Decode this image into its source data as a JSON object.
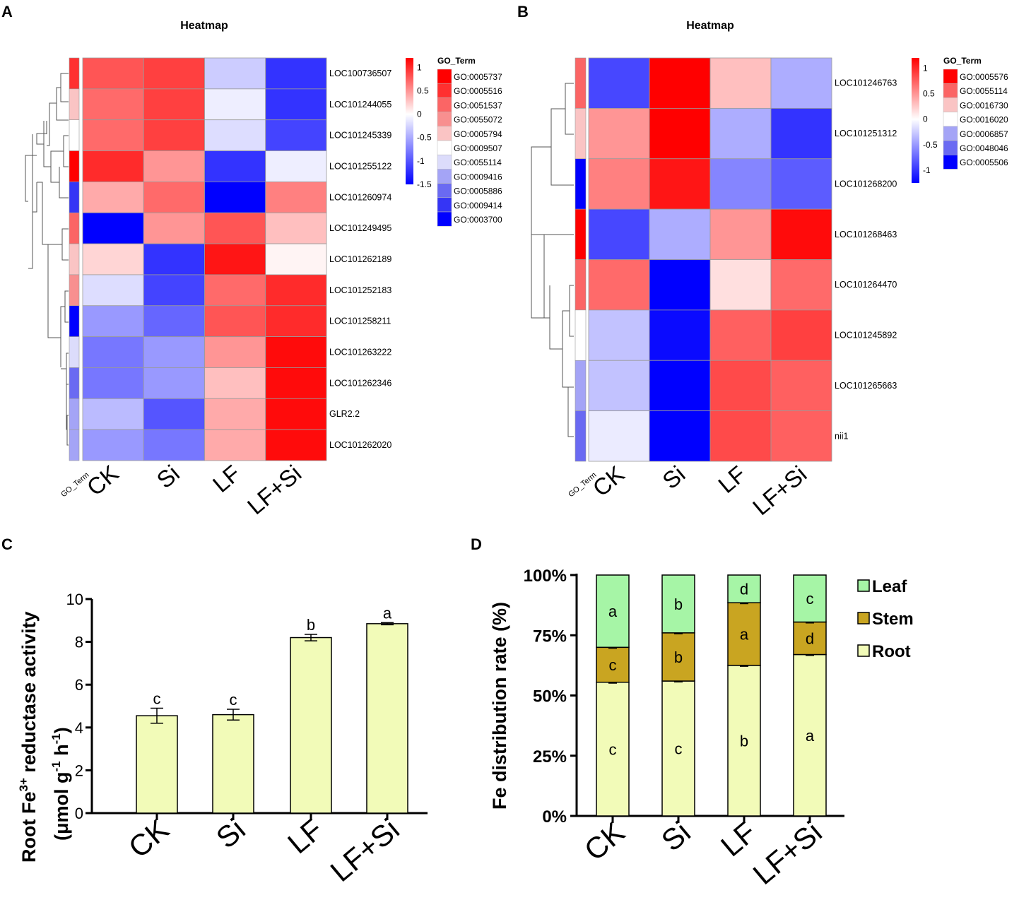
{
  "heatmap_scale": {
    "stops": [
      {
        "v": -1.5,
        "color": "#0000ff"
      },
      {
        "v": 0,
        "color": "#ffffff"
      },
      {
        "v": 1.2,
        "color": "#ff0000"
      }
    ]
  },
  "chart_data": [
    {
      "panel": "A",
      "type": "heatmap",
      "title": "Heatmap",
      "columns": [
        "CK",
        "Si",
        "LF",
        "LF+Si"
      ],
      "rows": [
        "LOC100736507",
        "LOC101244055",
        "LOC101245339",
        "LOC101255122",
        "LOC101260974",
        "LOC101249495",
        "LOC101262189",
        "LOC101252183",
        "LOC101258211",
        "LOC101263222",
        "LOC101262346",
        "GLR2.2",
        "LOC101262020"
      ],
      "values": [
        [
          0.8,
          0.9,
          -0.3,
          -1.2
        ],
        [
          0.7,
          0.9,
          -0.1,
          -1.2
        ],
        [
          0.7,
          0.9,
          -0.2,
          -1.1
        ],
        [
          1.0,
          0.5,
          -1.2,
          -0.1
        ],
        [
          0.4,
          0.7,
          -1.5,
          0.6
        ],
        [
          -1.5,
          0.5,
          0.8,
          0.3
        ],
        [
          0.2,
          -1.2,
          1.1,
          0.05
        ],
        [
          -0.2,
          -1.1,
          0.7,
          1.0
        ],
        [
          -0.6,
          -0.9,
          0.8,
          1.0
        ],
        [
          -0.8,
          -0.6,
          0.5,
          1.15
        ],
        [
          -0.8,
          -0.6,
          0.3,
          1.15
        ],
        [
          -0.4,
          -1.0,
          0.4,
          1.15
        ],
        [
          -0.6,
          -0.8,
          0.4,
          1.15
        ]
      ],
      "color_min": -1.5,
      "color_max": 1.2,
      "colorbar_ticks": [
        "1",
        "0.5",
        "0",
        "-0.5",
        "-1",
        "-1.5"
      ],
      "colorbar_tick_values": [
        1,
        0.5,
        0,
        -0.5,
        -1,
        -1.5
      ],
      "annotation_label": "GO_Term",
      "legend_title": "GO_Term",
      "go_legend": [
        {
          "term": "GO:0005737",
          "color": "#ff0000"
        },
        {
          "term": "GO:0005516",
          "color": "#ff3030"
        },
        {
          "term": "GO:0051537",
          "color": "#fb6565"
        },
        {
          "term": "GO:0055072",
          "color": "#f88f8f"
        },
        {
          "term": "GO:0005794",
          "color": "#fac4c4"
        },
        {
          "term": "GO:0009507",
          "color": "#ffffff"
        },
        {
          "term": "GO:0055114",
          "color": "#dcdcfb"
        },
        {
          "term": "GO:0009416",
          "color": "#a4a4f6"
        },
        {
          "term": "GO:0005886",
          "color": "#6a6af2"
        },
        {
          "term": "GO:0009414",
          "color": "#3535f5"
        },
        {
          "term": "GO:0003700",
          "color": "#0000ff"
        }
      ],
      "row_annotation": [
        1,
        4,
        5,
        0,
        9,
        2,
        4,
        3,
        10,
        6,
        8,
        7,
        7
      ]
    },
    {
      "panel": "B",
      "type": "heatmap",
      "title": "Heatmap",
      "columns": [
        "CK",
        "Si",
        "LF",
        "LF+Si"
      ],
      "rows": [
        "LOC101246763",
        "LOC101251312",
        "LOC101268200",
        "LOC101268463",
        "LOC101264470",
        "LOC101245892",
        "LOC101265663",
        "nii1"
      ],
      "values": [
        [
          -0.9,
          1.2,
          0.3,
          -0.4
        ],
        [
          0.5,
          1.2,
          -0.4,
          -1.0
        ],
        [
          0.6,
          1.1,
          -0.6,
          -0.8
        ],
        [
          -0.9,
          -0.4,
          0.5,
          1.15
        ],
        [
          0.7,
          -1.25,
          0.15,
          0.7
        ],
        [
          -0.3,
          -1.2,
          0.75,
          0.9
        ],
        [
          -0.3,
          -1.25,
          0.85,
          0.75
        ],
        [
          -0.1,
          -1.25,
          0.85,
          0.75
        ]
      ],
      "color_min": -1.25,
      "color_max": 1.2,
      "colorbar_ticks": [
        "1",
        "0.5",
        "0",
        "-0.5",
        "-1"
      ],
      "colorbar_tick_values": [
        1,
        0.5,
        0,
        -0.5,
        -1
      ],
      "annotation_label": "GO_Term",
      "legend_title": "GO_Term",
      "go_legend": [
        {
          "term": "GO:0005576",
          "color": "#ff0000"
        },
        {
          "term": "GO:0055114",
          "color": "#fb6565"
        },
        {
          "term": "GO:0016730",
          "color": "#fac4c4"
        },
        {
          "term": "GO:0016020",
          "color": "#ffffff"
        },
        {
          "term": "GO:0006857",
          "color": "#a4a4f6"
        },
        {
          "term": "GO:0048046",
          "color": "#6a6af2"
        },
        {
          "term": "GO:0005506",
          "color": "#0000ff"
        }
      ],
      "row_annotation": [
        1,
        2,
        6,
        0,
        1,
        3,
        4,
        5
      ]
    },
    {
      "panel": "C",
      "type": "bar",
      "categories": [
        "CK",
        "Si",
        "LF",
        "LF+Si"
      ],
      "values": [
        4.55,
        4.6,
        8.2,
        8.85
      ],
      "errors": [
        0.35,
        0.25,
        0.15,
        0.05
      ],
      "letters": [
        "c",
        "c",
        "b",
        "a"
      ],
      "ylabel_line1_pre": "Root Fe",
      "ylabel_sup": "3+",
      "ylabel_line1_post": " reductase activity",
      "ylabel_line2_pre": "(μmol g",
      "ylabel_sup2": "-1",
      "ylabel_line2_mid": " h",
      "ylabel_sup3": "-1",
      "ylabel_line2_post": ")",
      "ylim": [
        0,
        10
      ],
      "yticks": [
        "0",
        "2",
        "4",
        "6",
        "8",
        "10"
      ],
      "ytick_values": [
        0,
        2,
        4,
        6,
        8,
        10
      ],
      "bar_color": "#f2fbb8"
    },
    {
      "panel": "D",
      "type": "bar",
      "stacked": true,
      "categories": [
        "CK",
        "Si",
        "LF",
        "LF+Si"
      ],
      "series": [
        {
          "name": "Root",
          "values": [
            55.5,
            56,
            62.5,
            67
          ],
          "letters": [
            "c",
            "c",
            "b",
            "a"
          ],
          "color": "#f2fbb8"
        },
        {
          "name": "Stem",
          "values": [
            14.5,
            20,
            26,
            13.5
          ],
          "letters": [
            "c",
            "b",
            "a",
            "d"
          ],
          "color": "#c9a521"
        },
        {
          "name": "Leaf",
          "values": [
            30,
            24,
            11.5,
            19.5
          ],
          "letters": [
            "a",
            "b",
            "d",
            "c"
          ],
          "color": "#a6f5a6"
        }
      ],
      "ylabel": "Fe distribution rate (%)",
      "ylim": [
        0,
        100
      ],
      "yticks": [
        "0%",
        "25%",
        "50%",
        "75%",
        "100%"
      ],
      "ytick_values": [
        0,
        25,
        50,
        75,
        100
      ],
      "legend": [
        "Leaf",
        "Stem",
        "Root"
      ],
      "legend_position": "right"
    }
  ],
  "panel_labels": [
    "A",
    "B",
    "C",
    "D"
  ]
}
